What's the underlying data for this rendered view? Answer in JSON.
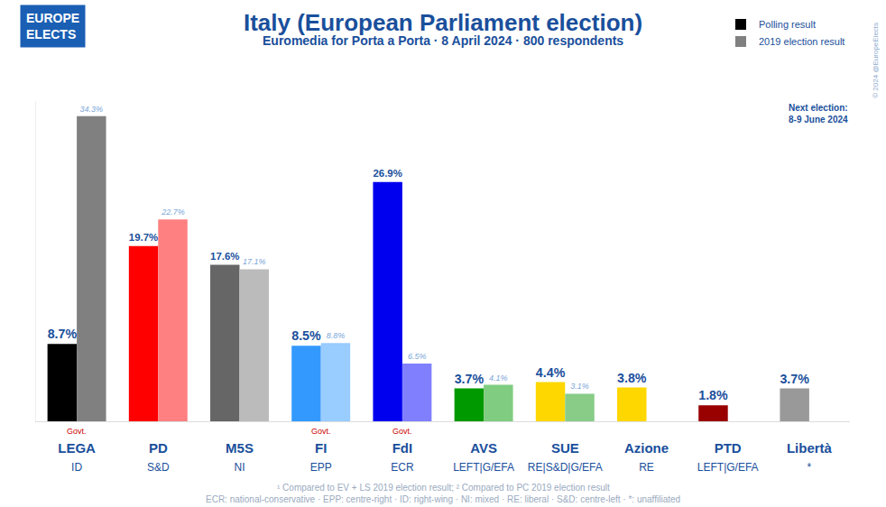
{
  "chart_data": {
    "type": "bar",
    "title": "Italy (European Parliament election)",
    "subtitle": "Euromedia for Porta a Porta · 8 April 2024 · 800 respondents",
    "logo": [
      "EUROPE",
      "ELECTS"
    ],
    "copyright": "© 2024 @EuropeElects",
    "next_election": [
      "Next election:",
      "8-9 June 2024"
    ],
    "categories": [
      "LEGA",
      "PD",
      "M5S",
      "FI",
      "FdI",
      "AVS",
      "SUE",
      "Azione",
      "PTD",
      "Libertà"
    ],
    "category_groups": [
      "ID",
      "S&D",
      "NI",
      "EPP",
      "ECR",
      "LEFT|G/EFA",
      "RE|S&D|G/EFA",
      "RE",
      "LEFT|G/EFA",
      "*"
    ],
    "series": [
      {
        "name": "Polling result",
        "values": [
          8.7,
          19.7,
          17.6,
          8.5,
          26.9,
          3.7,
          4.4,
          3.8,
          1.8,
          3.7
        ],
        "value_labels": [
          "8.7%",
          "19.7%",
          "17.6%",
          "8.5%",
          "26.9%",
          "3.7%",
          "4.4%",
          "3.8%",
          "1.8%",
          "3.7%"
        ],
        "colors": [
          "#000000",
          "#ff0000",
          "#666666",
          "#3399ff",
          "#0000ee",
          "#009900",
          "#ffd700",
          "#ffd700",
          "#990000",
          "#999999"
        ]
      },
      {
        "name": "2019 election result",
        "values": [
          34.3,
          22.7,
          17.1,
          8.8,
          6.5,
          4.1,
          3.1,
          null,
          null,
          null
        ],
        "value_labels": [
          "34.3%",
          "22.7%",
          "17.1%",
          "8.8%",
          "6.5%",
          "4.1%",
          "3.1%",
          null,
          null,
          null
        ],
        "colors": [
          "#808080",
          "#ff8080",
          "#bbbbbb",
          "#99ccff",
          "#8080ff",
          "#80cc80",
          "#88cc88",
          null,
          null,
          null
        ]
      }
    ],
    "annotations": [
      {
        "text": "Govt.",
        "category": "LEGA"
      },
      {
        "text": "Govt.",
        "category": "FI"
      },
      {
        "text": "Govt.",
        "category": "FdI"
      }
    ],
    "footnotes": [
      "¹ Compared to EV + LS 2019 election result; ² Compared to PC 2019 election result",
      "ECR: national-conservative · EPP: centre-right · ID: right-wing · NI: mixed · RE: liberal · S&D: centre-left · *: unaffiliated"
    ],
    "ylim": [
      0,
      36
    ],
    "grid": false,
    "legend": "top right",
    "data_labels": true,
    "tick_labels": "x"
  }
}
